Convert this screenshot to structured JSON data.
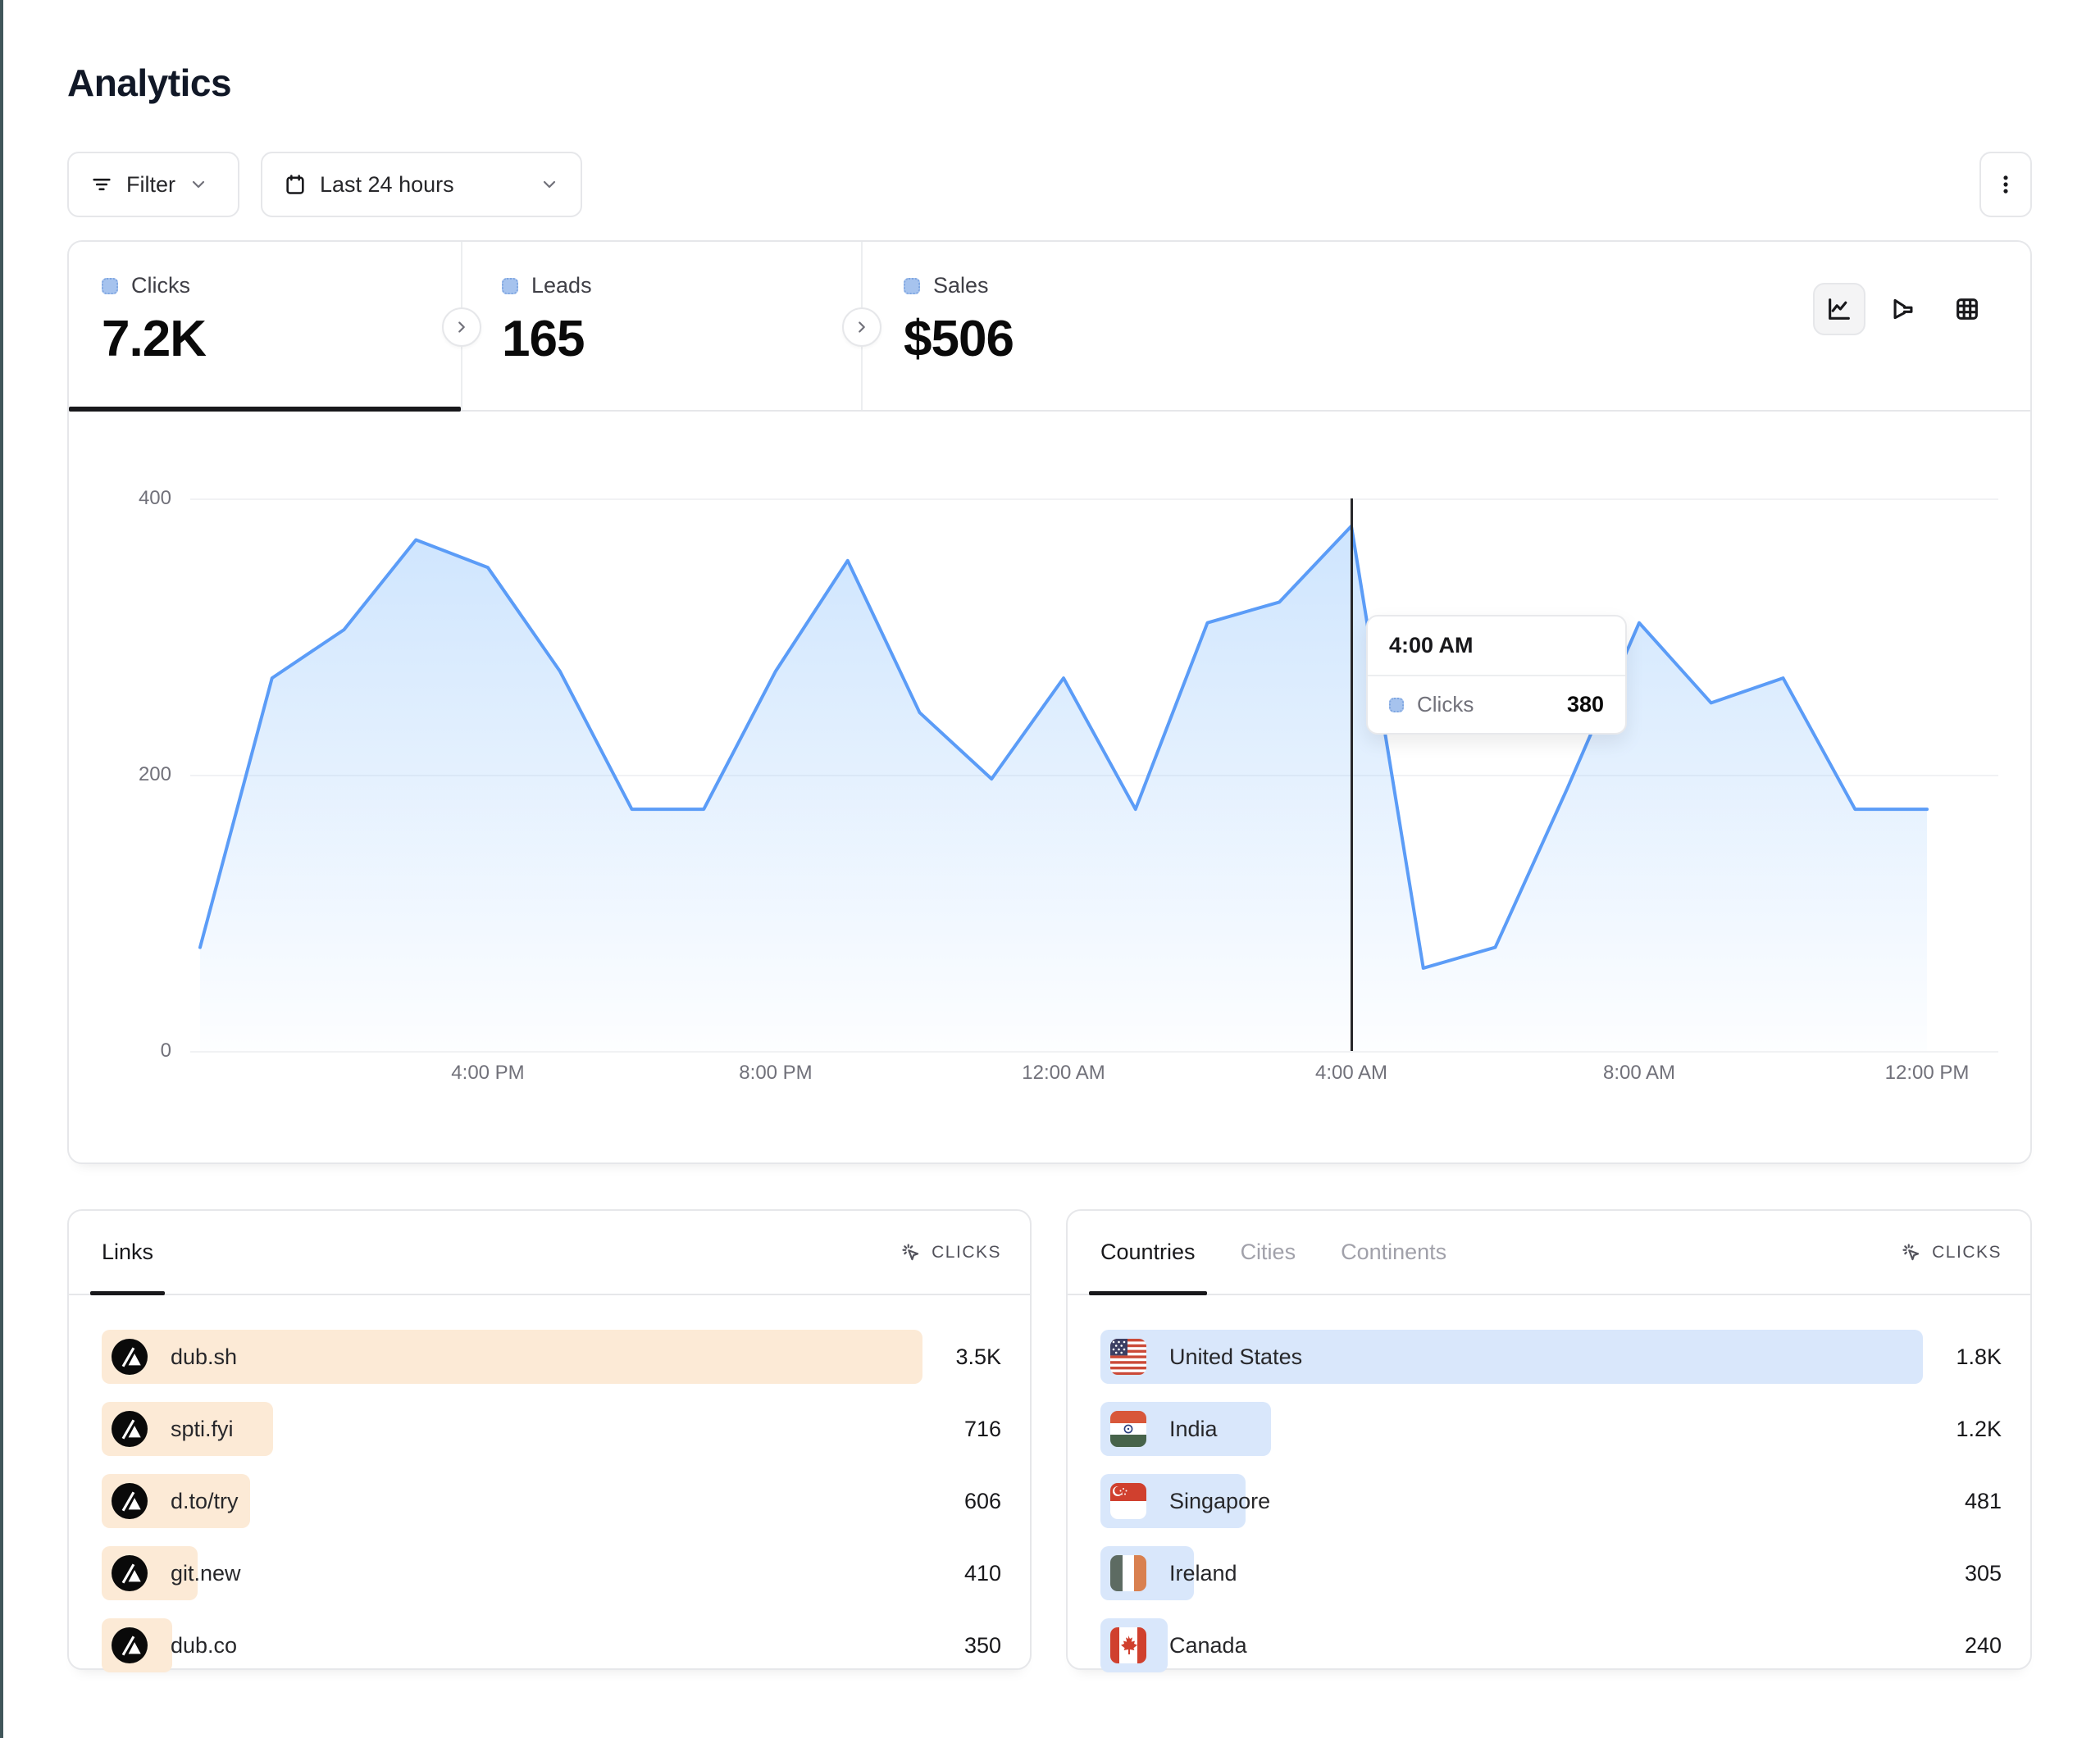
{
  "page": {
    "title": "Analytics"
  },
  "toolbar": {
    "filter_label": "Filter",
    "date_range_label": "Last 24 hours"
  },
  "stats": {
    "tabs": [
      {
        "label": "Clicks",
        "value": "7.2K",
        "active": true
      },
      {
        "label": "Leads",
        "value": "165",
        "active": false
      },
      {
        "label": "Sales",
        "value": "$506",
        "active": false
      }
    ]
  },
  "chart_data": {
    "type": "area",
    "series_name": "Clicks",
    "x": [
      "12:00 PM",
      "1:00 PM",
      "2:00 PM",
      "3:00 PM",
      "4:00 PM",
      "5:00 PM",
      "6:00 PM",
      "7:00 PM",
      "8:00 PM",
      "9:00 PM",
      "10:00 PM",
      "11:00 PM",
      "12:00 AM",
      "1:00 AM",
      "2:00 AM",
      "3:00 AM",
      "4:00 AM",
      "5:00 AM",
      "6:00 AM",
      "7:00 AM",
      "8:00 AM",
      "9:00 AM",
      "10:00 AM",
      "11:00 AM",
      "12:00 PM"
    ],
    "values": [
      75,
      270,
      305,
      370,
      350,
      275,
      175,
      175,
      275,
      355,
      245,
      197,
      270,
      175,
      310,
      325,
      380,
      60,
      75,
      190,
      310,
      252,
      270,
      175,
      175
    ],
    "xticks": [
      "4:00 PM",
      "8:00 PM",
      "12:00 AM",
      "4:00 AM",
      "8:00 AM",
      "12:00 PM"
    ],
    "yticks": [
      "400",
      "200",
      "0"
    ],
    "ylim": [
      0,
      400
    ],
    "grid": "horizontal",
    "line_color": "#5b9cf7",
    "tooltip": {
      "title": "4:00 AM",
      "series": "Clicks",
      "value": "380",
      "x_index": 16
    }
  },
  "links_panel": {
    "tab_label": "Links",
    "metric_label": "CLICKS",
    "rows": [
      {
        "label": "dub.sh",
        "value": "3.5K",
        "bar": 1.0
      },
      {
        "label": "spti.fyi",
        "value": "716",
        "bar": 0.209
      },
      {
        "label": "d.to/try",
        "value": "606",
        "bar": 0.181
      },
      {
        "label": "git.new",
        "value": "410",
        "bar": 0.117
      },
      {
        "label": "dub.co",
        "value": "350",
        "bar": 0.086
      }
    ]
  },
  "countries_panel": {
    "tabs": [
      {
        "label": "Countries",
        "active": true
      },
      {
        "label": "Cities",
        "active": false
      },
      {
        "label": "Continents",
        "active": false
      }
    ],
    "metric_label": "CLICKS",
    "rows": [
      {
        "label": "United States",
        "value": "1.8K",
        "bar": 1.0,
        "flag": "united-states"
      },
      {
        "label": "India",
        "value": "1.2K",
        "bar": 0.207,
        "flag": "india"
      },
      {
        "label": "Singapore",
        "value": "481",
        "bar": 0.176,
        "flag": "singapore"
      },
      {
        "label": "Ireland",
        "value": "305",
        "bar": 0.114,
        "flag": "ireland"
      },
      {
        "label": "Canada",
        "value": "240",
        "bar": 0.082,
        "flag": "canada"
      }
    ]
  },
  "colors": {
    "accent_blue": "#5b9cf7",
    "legend_chip": "#a6c3ee",
    "links_bar": "#fcead6",
    "countries_bar": "#d9e7fb",
    "crosshair": "#27272a",
    "border": "#e6e7ea",
    "muted_text": "#71717a"
  }
}
